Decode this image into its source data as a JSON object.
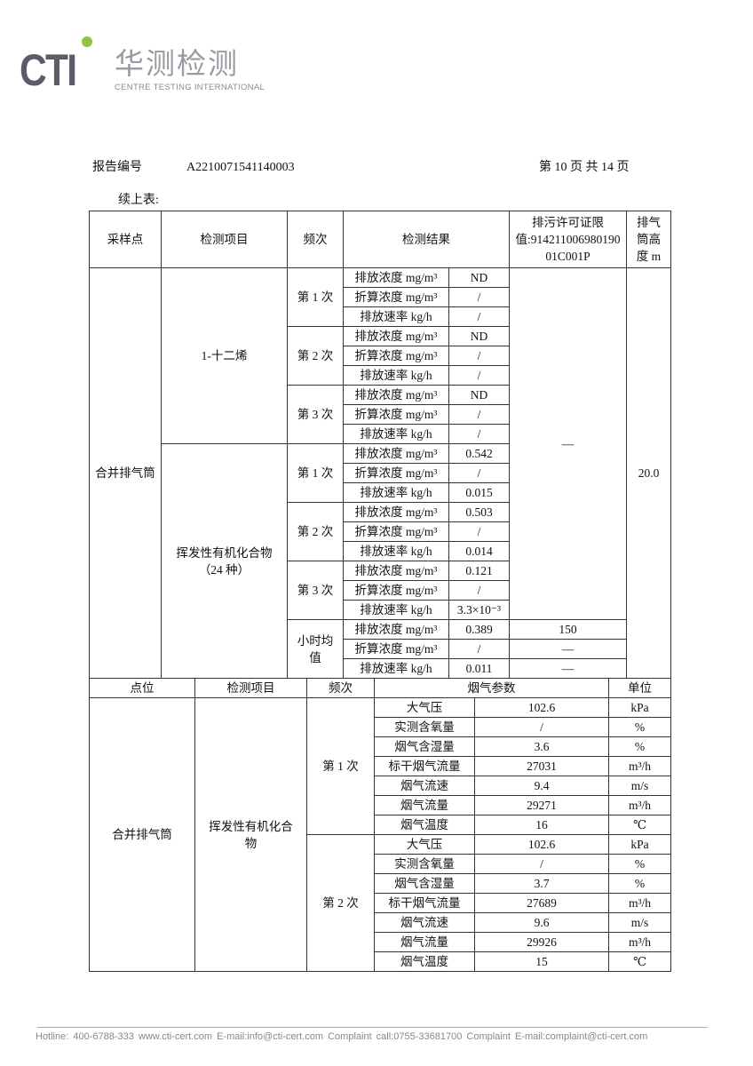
{
  "logo": {
    "brand": "CTI",
    "cn_name": "华测检测",
    "en_name": "CENTRE TESTING INTERNATIONAL",
    "accent": "#8dc63f"
  },
  "header": {
    "report_no_label": "报告编号",
    "report_no": "A2210071541140003",
    "page_info": "第 10 页 共 14 页"
  },
  "continued_label": "续上表:",
  "table1": {
    "headers": {
      "site": "采样点",
      "item": "检测项目",
      "freq": "频次",
      "result": "检测结果",
      "limit": "排污许可证限值:914211006980190 01C001P",
      "height": "排气筒高度 m"
    },
    "site": "合并排气筒",
    "stack_height": "20.0",
    "shared_limit": "—",
    "items": [
      {
        "name": "1-十二烯",
        "runs": [
          {
            "freq": "第 1 次",
            "rows": [
              [
                "排放浓度 mg/m³",
                "ND"
              ],
              [
                "折算浓度 mg/m³",
                "/"
              ],
              [
                "排放速率 kg/h",
                "/"
              ]
            ]
          },
          {
            "freq": "第 2 次",
            "rows": [
              [
                "排放浓度 mg/m³",
                "ND"
              ],
              [
                "折算浓度 mg/m³",
                "/"
              ],
              [
                "排放速率 kg/h",
                "/"
              ]
            ]
          },
          {
            "freq": "第 3 次",
            "rows": [
              [
                "排放浓度 mg/m³",
                "ND"
              ],
              [
                "折算浓度 mg/m³",
                "/"
              ],
              [
                "排放速率 kg/h",
                "/"
              ]
            ]
          }
        ]
      },
      {
        "name": "挥发性有机化合物（24 种）",
        "runs": [
          {
            "freq": "第 1 次",
            "rows": [
              [
                "排放浓度 mg/m³",
                "0.542"
              ],
              [
                "折算浓度 mg/m³",
                "/"
              ],
              [
                "排放速率 kg/h",
                "0.015"
              ]
            ]
          },
          {
            "freq": "第 2 次",
            "rows": [
              [
                "排放浓度 mg/m³",
                "0.503"
              ],
              [
                "折算浓度 mg/m³",
                "/"
              ],
              [
                "排放速率 kg/h",
                "0.014"
              ]
            ]
          },
          {
            "freq": "第 3 次",
            "rows": [
              [
                "排放浓度 mg/m³",
                "0.121"
              ],
              [
                "折算浓度 mg/m³",
                "/"
              ],
              [
                "排放速率 kg/h",
                "3.3×10⁻³"
              ]
            ]
          },
          {
            "freq": "小时均值",
            "rows": [
              [
                "排放浓度 mg/m³",
                "0.389",
                "150"
              ],
              [
                "折算浓度 mg/m³",
                "/",
                "—"
              ],
              [
                "排放速率 kg/h",
                "0.011",
                "—"
              ]
            ]
          }
        ]
      }
    ]
  },
  "table2": {
    "headers": {
      "site": "点位",
      "item": "检测项目",
      "freq": "频次",
      "params": "烟气参数",
      "unit": "单位"
    },
    "site": "合并排气筒",
    "item": "挥发性有机化合物",
    "runs": [
      {
        "freq": "第 1 次",
        "rows": [
          [
            "大气压",
            "102.6",
            "kPa"
          ],
          [
            "实测含氧量",
            "/",
            "%"
          ],
          [
            "烟气含湿量",
            "3.6",
            "%"
          ],
          [
            "标干烟气流量",
            "27031",
            "m³/h"
          ],
          [
            "烟气流速",
            "9.4",
            "m/s"
          ],
          [
            "烟气流量",
            "29271",
            "m³/h"
          ],
          [
            "烟气温度",
            "16",
            "℃"
          ]
        ]
      },
      {
        "freq": "第 2 次",
        "rows": [
          [
            "大气压",
            "102.6",
            "kPa"
          ],
          [
            "实测含氧量",
            "/",
            "%"
          ],
          [
            "烟气含湿量",
            "3.7",
            "%"
          ],
          [
            "标干烟气流量",
            "27689",
            "m³/h"
          ],
          [
            "烟气流速",
            "9.6",
            "m/s"
          ],
          [
            "烟气流量",
            "29926",
            "m³/h"
          ],
          [
            "烟气温度",
            "15",
            "℃"
          ]
        ]
      }
    ]
  },
  "footer": "Hotline: 400-6788-333   www.cti-cert.com   E-mail:info@cti-cert.com   Complaint call:0755-33681700   Complaint E-mail:complaint@cti-cert.com"
}
